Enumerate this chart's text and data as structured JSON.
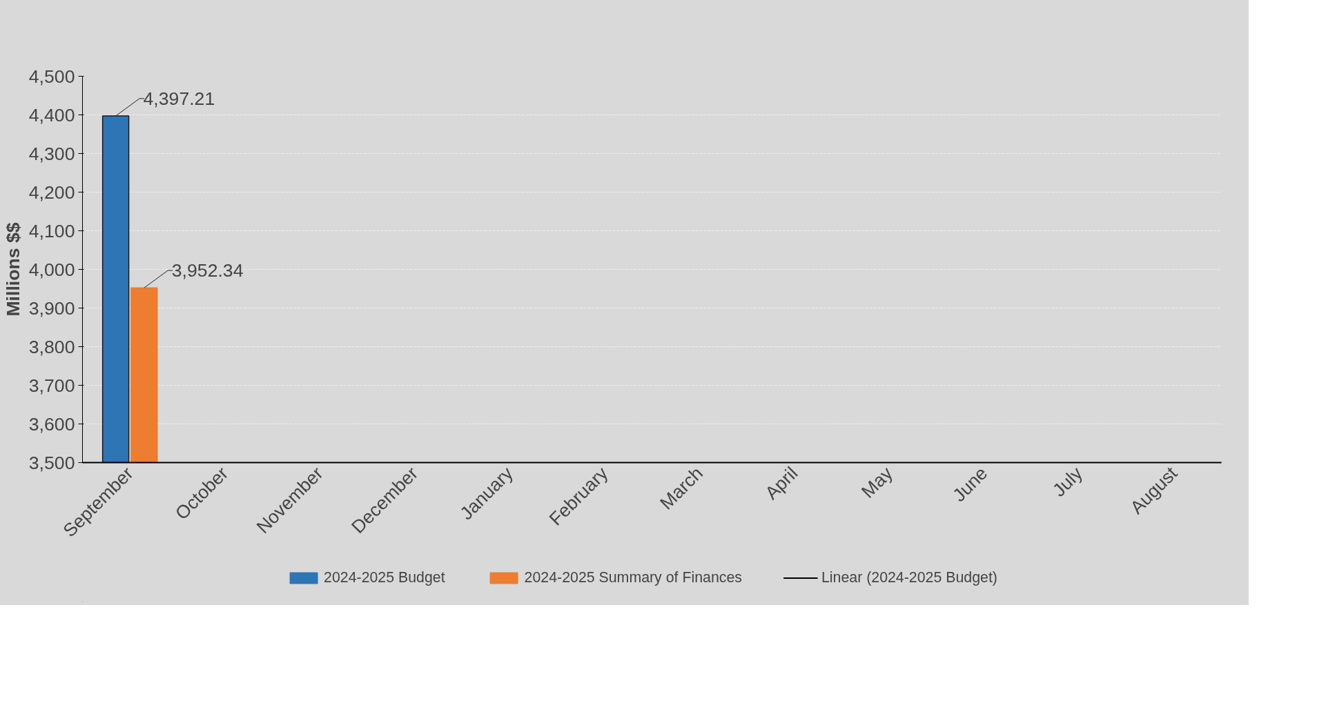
{
  "chart_data": {
    "type": "bar",
    "ylabel": "Millions $$",
    "categories": [
      "September",
      "October",
      "November",
      "December",
      "January",
      "February",
      "March",
      "April",
      "May",
      "June",
      "July",
      "August"
    ],
    "series": [
      {
        "name": "2024-2025 Budget",
        "color": "#2e75b6",
        "values": [
          4397.21,
          null,
          null,
          null,
          null,
          null,
          null,
          null,
          null,
          null,
          null,
          null
        ],
        "value_labels": [
          "4,397.21",
          null,
          null,
          null,
          null,
          null,
          null,
          null,
          null,
          null,
          null,
          null
        ]
      },
      {
        "name": "2024-2025 Summary of Finances",
        "color": "#ed7d31",
        "values": [
          3952.34,
          null,
          null,
          null,
          null,
          null,
          null,
          null,
          null,
          null,
          null,
          null
        ],
        "value_labels": [
          "3,952.34",
          null,
          null,
          null,
          null,
          null,
          null,
          null,
          null,
          null,
          null,
          null
        ]
      },
      {
        "name": "Linear (2024-2025 Budget)",
        "type": "line",
        "color": "#000000",
        "values": [
          null,
          null,
          null,
          null,
          null,
          null,
          null,
          null,
          null,
          null,
          null,
          null
        ]
      }
    ],
    "ylim": [
      3500,
      4500
    ],
    "yticks": [
      {
        "value": 3500,
        "label": "3,500"
      },
      {
        "value": 3600,
        "label": "3,600"
      },
      {
        "value": 3700,
        "label": "3,700"
      },
      {
        "value": 3800,
        "label": "3,800"
      },
      {
        "value": 3900,
        "label": "3,900"
      },
      {
        "value": 4000,
        "label": "4,000"
      },
      {
        "value": 4100,
        "label": "4,100"
      },
      {
        "value": 4200,
        "label": "4,200"
      },
      {
        "value": 4300,
        "label": "4,300"
      },
      {
        "value": 4400,
        "label": "4,400"
      },
      {
        "value": 4500,
        "label": "4,500"
      }
    ],
    "grid": "y",
    "legend": "bottom"
  }
}
